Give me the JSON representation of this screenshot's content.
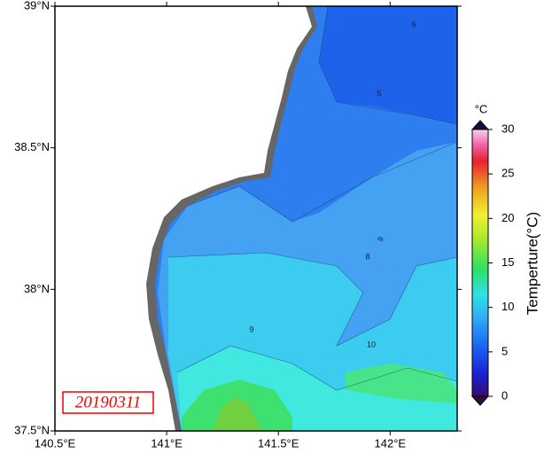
{
  "map": {
    "lat_range": [
      37.5,
      39
    ],
    "lon_range": [
      140.5,
      142.3
    ],
    "lat_ticks": [
      {
        "value": 39,
        "label": "39°N"
      },
      {
        "value": 38.5,
        "label": "38.5°N"
      },
      {
        "value": 38,
        "label": "38°N"
      },
      {
        "value": 37.5,
        "label": "37.5°N"
      }
    ],
    "lon_ticks": [
      {
        "value": 140.5,
        "label": "140.5°E"
      },
      {
        "value": 141,
        "label": "141°E"
      },
      {
        "value": 141.5,
        "label": "141.5°E"
      },
      {
        "value": 142,
        "label": "142°E"
      }
    ],
    "date": "20190311",
    "contour_labels": [
      6,
      5,
      9,
      8,
      9,
      10
    ]
  },
  "colorbar": {
    "unit": "°C",
    "label": "Temperture(°C)",
    "range": [
      0,
      30
    ],
    "ticks": [
      0,
      5,
      10,
      15,
      20,
      25,
      30
    ]
  }
}
